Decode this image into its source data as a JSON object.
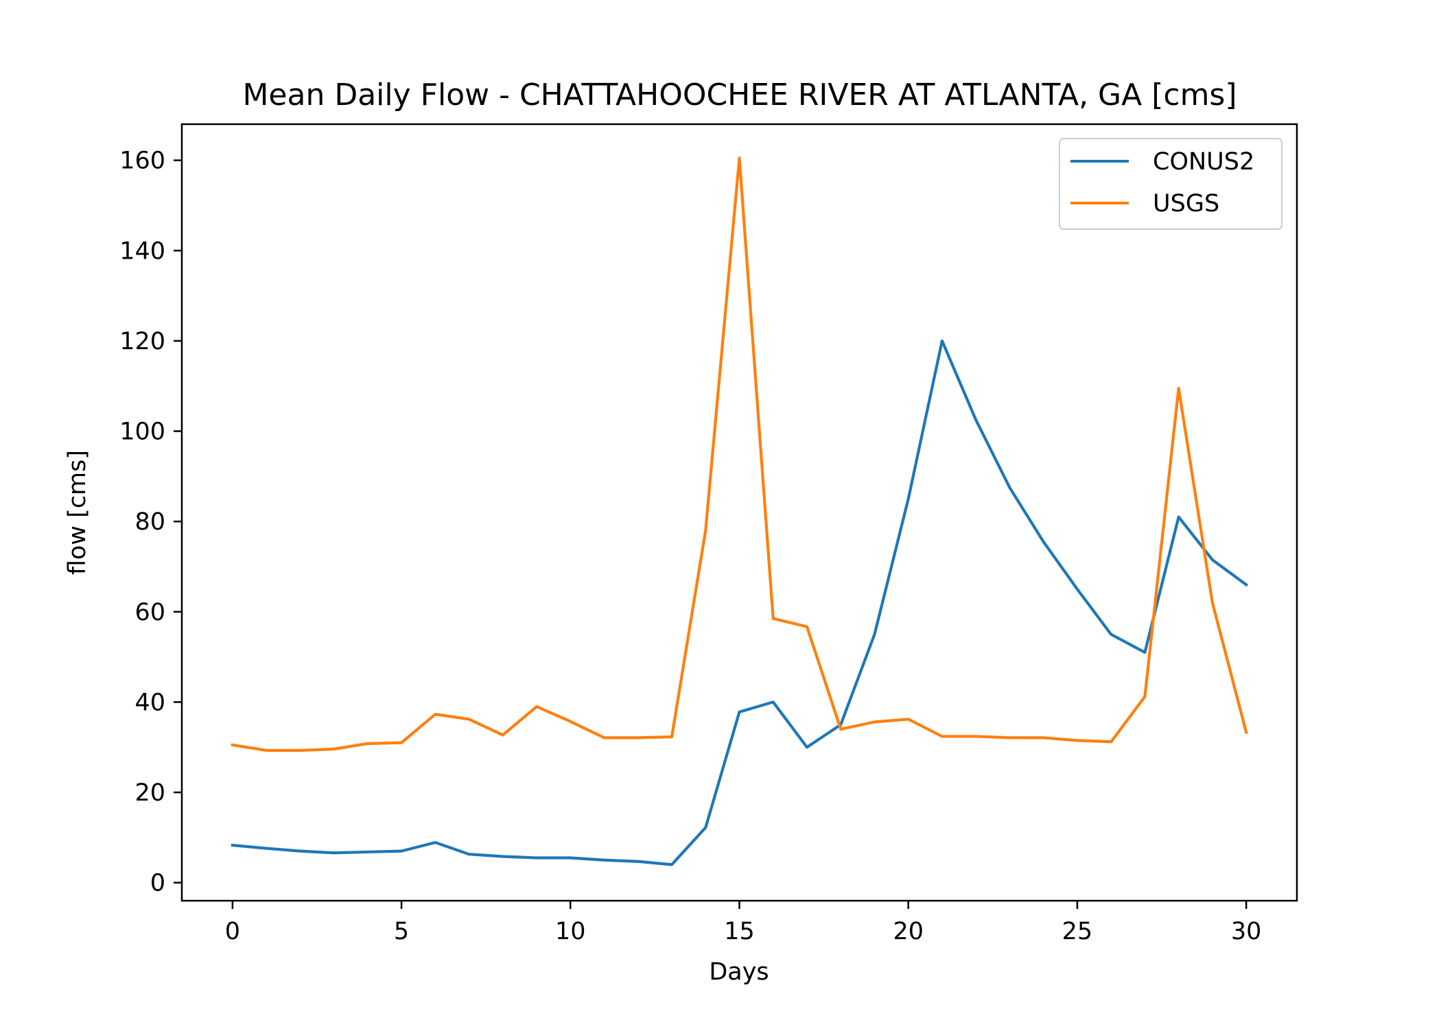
{
  "chart_data": {
    "type": "line",
    "title": "Mean Daily Flow - CHATTAHOOCHEE RIVER AT ATLANTA, GA [cms]",
    "xlabel": "Days",
    "ylabel": "flow [cms]",
    "xlim": [
      -1.5,
      31.5
    ],
    "ylim": [
      -4,
      168
    ],
    "xticks": [
      0,
      5,
      10,
      15,
      20,
      25,
      30
    ],
    "yticks": [
      0,
      20,
      40,
      60,
      80,
      100,
      120,
      140,
      160
    ],
    "grid": false,
    "legend_position": "top-right",
    "x": [
      0,
      1,
      2,
      3,
      4,
      5,
      6,
      7,
      8,
      9,
      10,
      11,
      12,
      13,
      14,
      15,
      16,
      17,
      18,
      19,
      20,
      21,
      22,
      23,
      24,
      25,
      26,
      27,
      28,
      29,
      30
    ],
    "series": [
      {
        "name": "CONUS2",
        "color": "#1f77b4",
        "values": [
          8.3,
          7.6,
          7.0,
          6.6,
          6.8,
          7.0,
          8.9,
          6.3,
          5.8,
          5.5,
          5.5,
          5.0,
          4.7,
          4.0,
          12.2,
          37.8,
          40.0,
          30.0,
          35.0,
          55.0,
          85.0,
          120.0,
          102.5,
          87.5,
          75.5,
          65.0,
          55.0,
          51.0,
          81.0,
          71.5,
          66.0
        ]
      },
      {
        "name": "USGS",
        "color": "#ff7f0e",
        "values": [
          30.5,
          29.3,
          29.3,
          29.6,
          30.8,
          31.0,
          37.3,
          36.2,
          32.7,
          39.0,
          35.7,
          32.1,
          32.1,
          32.3,
          78.0,
          160.5,
          58.5,
          56.7,
          34.0,
          35.6,
          36.2,
          32.4,
          32.4,
          32.1,
          32.1,
          31.5,
          31.2,
          41.2,
          109.5,
          62.0,
          33.3
        ]
      }
    ]
  }
}
